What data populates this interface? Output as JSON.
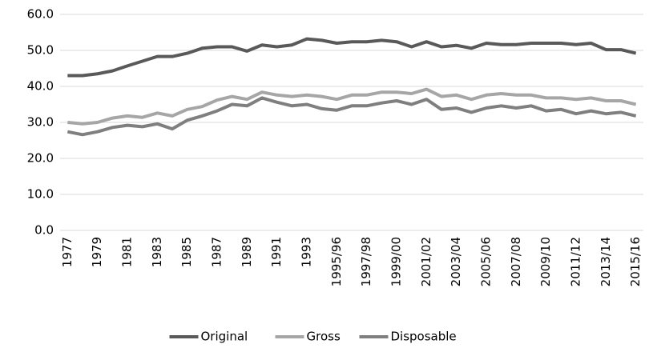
{
  "chart_data": {
    "type": "line",
    "categories": [
      "1977",
      null,
      "1979",
      null,
      "1981",
      null,
      "1983",
      null,
      "1985",
      null,
      "1987",
      null,
      "1989",
      null,
      "1991",
      null,
      "1993",
      null,
      "1995/96",
      null,
      "1997/98",
      null,
      "1999/00",
      null,
      "2001/02",
      null,
      "2003/04",
      null,
      "2005/06",
      null,
      "2007/08",
      null,
      "2009/10",
      null,
      "2011/12",
      null,
      "2013/14",
      null,
      "2015/16"
    ],
    "series": [
      {
        "name": "Original",
        "color": "#595959",
        "values": [
          43,
          43,
          43.5,
          44.3,
          45.7,
          47,
          48.3,
          48.3,
          49.2,
          50.6,
          51,
          51,
          49.8,
          51.5,
          51,
          51.5,
          53.2,
          52.8,
          52,
          52.4,
          52.4,
          52.8,
          52.4,
          51,
          52.4,
          51,
          51.4,
          50.6,
          52,
          51.6,
          51.6,
          52,
          52,
          52,
          51.6,
          52,
          50.2,
          50.2,
          49.2
        ]
      },
      {
        "name": "Gross",
        "color": "#a6a6a6",
        "values": [
          30,
          29.6,
          30,
          31.2,
          31.8,
          31.4,
          32.6,
          31.8,
          33.6,
          34.4,
          36.2,
          37.2,
          36.4,
          38.4,
          37.6,
          37.2,
          37.6,
          37.2,
          36.4,
          37.6,
          37.6,
          38.4,
          38.4,
          38,
          39.2,
          37.2,
          37.6,
          36.4,
          37.6,
          38,
          37.6,
          37.6,
          36.8,
          36.8,
          36.4,
          36.8,
          36,
          36,
          35
        ]
      },
      {
        "name": "Disposable",
        "color": "#7f7f7f",
        "values": [
          27.4,
          26.6,
          27.4,
          28.6,
          29.2,
          28.8,
          29.6,
          28.2,
          30.6,
          31.8,
          33.2,
          35,
          34.6,
          36.8,
          35.6,
          34.6,
          35,
          33.8,
          33.4,
          34.6,
          34.6,
          35.4,
          36,
          35,
          36.4,
          33.6,
          34,
          32.8,
          34,
          34.6,
          34,
          34.6,
          33.2,
          33.6,
          32.4,
          33.2,
          32.4,
          32.8,
          31.8
        ]
      }
    ],
    "ylim": [
      0,
      60
    ],
    "yticks": [
      {
        "value": 0,
        "label": "0.0"
      },
      {
        "value": 10,
        "label": "10.0"
      },
      {
        "value": 20,
        "label": "20.0"
      },
      {
        "value": 30,
        "label": "30.0"
      },
      {
        "value": 40,
        "label": "40.0"
      },
      {
        "value": 50,
        "label": "50.0"
      },
      {
        "value": 60,
        "label": "60.0"
      }
    ],
    "grid": true,
    "legend": "bottom"
  }
}
